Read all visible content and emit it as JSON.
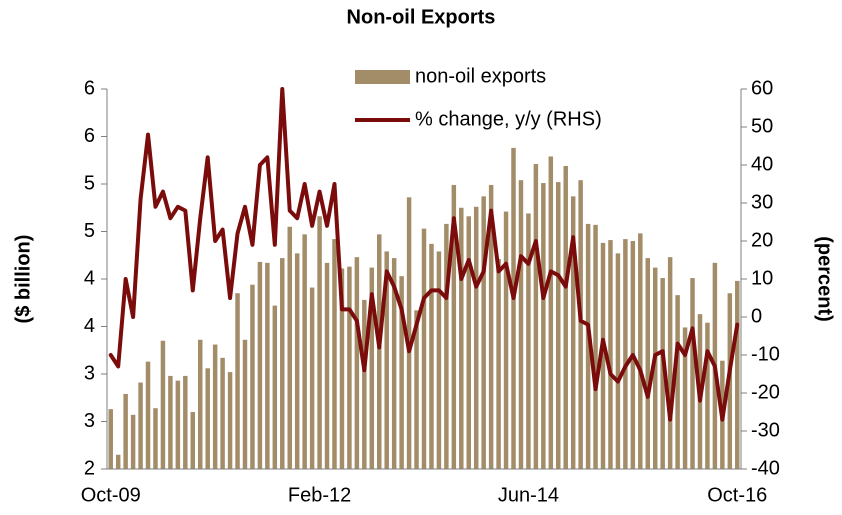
{
  "chart_data": {
    "type": "bar_line",
    "title": "Non-oil Exports",
    "y_label": "($ billion)",
    "y2_label": "(percent)",
    "categories": [
      "Oct-09",
      null,
      null,
      null,
      null,
      null,
      null,
      null,
      null,
      null,
      null,
      null,
      null,
      null,
      null,
      null,
      null,
      null,
      null,
      null,
      null,
      null,
      null,
      null,
      null,
      null,
      null,
      null,
      "Feb-12",
      null,
      null,
      null,
      null,
      null,
      null,
      null,
      null,
      null,
      null,
      null,
      null,
      null,
      null,
      null,
      null,
      null,
      null,
      null,
      null,
      null,
      null,
      null,
      null,
      null,
      null,
      null,
      "Jun-14",
      null,
      null,
      null,
      null,
      null,
      null,
      null,
      null,
      null,
      null,
      null,
      null,
      null,
      null,
      null,
      null,
      null,
      null,
      null,
      null,
      null,
      null,
      null,
      null,
      null,
      null,
      null,
      "Oct-16"
    ],
    "series": [
      {
        "name": "non-oil exports",
        "type": "bar",
        "color": "#a38c68",
        "values": [
          2.63,
          2.15,
          2.79,
          2.57,
          2.91,
          3.13,
          2.64,
          3.35,
          2.98,
          2.93,
          2.98,
          2.6,
          3.36,
          3.06,
          3.31,
          3.17,
          3.02,
          3.85,
          3.36,
          3.94,
          4.18,
          4.17,
          3.72,
          4.22,
          4.55,
          4.27,
          4.47,
          3.91,
          4.66,
          4.17,
          4.42,
          4.11,
          4.13,
          4.23,
          3.78,
          4.12,
          4.47,
          4.29,
          4.22,
          4.03,
          4.86,
          3.67,
          4.53,
          4.37,
          4.29,
          4.58,
          4.99,
          4.75,
          4.66,
          4.76,
          4.87,
          4.99,
          4.21,
          4.71,
          5.38,
          5.04,
          4.69,
          5.21,
          5.01,
          5.29,
          5.02,
          5.19,
          4.87,
          5.04,
          4.58,
          4.57,
          4.38,
          4.41,
          4.27,
          4.42,
          4.4,
          4.48,
          4.22,
          4.12,
          4.01,
          4.23,
          3.83,
          3.49,
          4.01,
          3.63,
          3.54,
          4.17,
          3.14,
          3.85,
          3.98
        ]
      },
      {
        "name": "% change, y/y (RHS)",
        "type": "line",
        "axis": "y2",
        "color": "#7b0c0c",
        "values": [
          -10,
          -13,
          10,
          0,
          31,
          48,
          29,
          33,
          26,
          29,
          28,
          7,
          26,
          42,
          20,
          23,
          5,
          22,
          29,
          19,
          40,
          42,
          19,
          60,
          28,
          26,
          35,
          24,
          33,
          24,
          35,
          2,
          2,
          -1,
          -14,
          6,
          -8,
          12,
          8,
          2,
          -9,
          -2,
          5,
          7,
          7,
          5,
          26,
          10,
          15,
          8,
          12,
          28,
          12,
          14,
          5,
          16,
          14,
          20,
          5,
          12,
          11,
          8,
          21,
          -1,
          -2,
          -19,
          -6,
          -15,
          -17,
          -13,
          -10,
          -14,
          -21,
          -10,
          -9,
          -27,
          -7,
          -10,
          -3,
          -22,
          -9,
          -13,
          -27,
          -14,
          -2
        ]
      }
    ],
    "ylim": [
      2,
      6
    ],
    "yticks": [
      {
        "value": 2,
        "label": "2"
      },
      {
        "value": 2.5,
        "label": "3"
      },
      {
        "value": 3,
        "label": "3"
      },
      {
        "value": 3.5,
        "label": "4"
      },
      {
        "value": 4,
        "label": "4"
      },
      {
        "value": 4.5,
        "label": "5"
      },
      {
        "value": 5,
        "label": "5"
      },
      {
        "value": 5.5,
        "label": "6"
      },
      {
        "value": 6,
        "label": "6"
      }
    ],
    "y2lim": [
      -40,
      60
    ],
    "y2ticks": [
      -40,
      -30,
      -20,
      -10,
      0,
      10,
      20,
      30,
      40,
      50,
      60
    ]
  }
}
